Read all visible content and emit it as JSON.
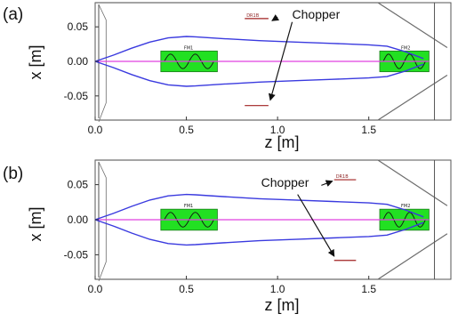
{
  "chart_data": [
    {
      "panel": "(a)",
      "type": "line",
      "xlabel": "z [m]",
      "ylabel": "x [m]",
      "xlim": [
        0.0,
        1.95
      ],
      "ylim": [
        -0.085,
        0.085
      ],
      "xticks": [
        "0.0",
        "0.5",
        "1.0",
        "1.5"
      ],
      "xtick_values": [
        0.0,
        0.5,
        1.0,
        1.5
      ],
      "yticks": [
        "0.05",
        "0.00",
        "-0.05"
      ],
      "ytick_values": [
        0.05,
        0.0,
        -0.05
      ],
      "series": [
        {
          "values_x": [
            0.0,
            0.1,
            0.2,
            0.3,
            0.4,
            0.5,
            0.55,
            0.7,
            0.9,
            1.1,
            1.3,
            1.5,
            1.6,
            1.7,
            1.8
          ],
          "values_y": [
            0.0,
            0.009,
            0.019,
            0.028,
            0.034,
            0.036,
            0.0355,
            0.033,
            0.03,
            0.028,
            0.026,
            0.024,
            0.022,
            0.014,
            0.004
          ]
        },
        {
          "values_x": [
            0.0,
            0.1,
            0.2,
            0.3,
            0.4,
            0.5,
            0.55,
            0.7,
            0.9,
            1.1,
            1.3,
            1.5,
            1.6,
            1.7,
            1.8
          ],
          "values_y": [
            0.0,
            -0.009,
            -0.019,
            -0.028,
            -0.034,
            -0.036,
            -0.0355,
            -0.033,
            -0.03,
            -0.028,
            -0.026,
            -0.024,
            -0.022,
            -0.014,
            -0.004
          ]
        }
      ],
      "axis_line_color": "#e040e0",
      "envelope_color": "#3a3adf",
      "magnets": [
        {
          "label": "FM1",
          "x_start": 0.36,
          "x_end": 0.67,
          "y_half": 0.015
        },
        {
          "label": "FM2",
          "x_start": 1.56,
          "x_end": 1.83,
          "y_half": 0.015
        }
      ],
      "magnet_color": "#22e022",
      "aperture": {
        "color": "#6d6d6d",
        "top": [
          [
            0.0,
            0.085
          ],
          [
            1.55,
            0.085
          ],
          [
            1.93,
            0.02
          ]
        ],
        "bottom": [
          [
            0.0,
            -0.085
          ],
          [
            1.55,
            -0.085
          ],
          [
            1.93,
            -0.02
          ]
        ],
        "left_edge_x": 0.0,
        "divider_x": 1.86
      },
      "markers": [
        {
          "label": "DR1B",
          "x_start": 0.82,
          "x_end": 0.95,
          "y": 0.062
        },
        {
          "x_start": 0.82,
          "x_end": 0.95,
          "y": -0.064
        }
      ],
      "marker_color": "#a02020",
      "annotation": {
        "text": "Chopper",
        "text_z": 1.08,
        "text_x": 0.068,
        "arrows": [
          {
            "from": [
              1.0,
              0.064
            ],
            "to": [
              0.97,
              0.059
            ]
          },
          {
            "from": [
              1.08,
              0.057
            ],
            "to": [
              0.96,
              -0.056
            ]
          }
        ]
      }
    },
    {
      "panel": "(b)",
      "type": "line",
      "xlabel": "z [m]",
      "ylabel": "x [m]",
      "xlim": [
        0.0,
        1.95
      ],
      "ylim": [
        -0.085,
        0.085
      ],
      "xticks": [
        "0.0",
        "0.5",
        "1.0",
        "1.5"
      ],
      "xtick_values": [
        0.0,
        0.5,
        1.0,
        1.5
      ],
      "yticks": [
        "0.05",
        "0.00",
        "-0.05"
      ],
      "ytick_values": [
        0.05,
        0.0,
        -0.05
      ],
      "series": [
        {
          "values_x": [
            0.0,
            0.1,
            0.2,
            0.3,
            0.4,
            0.5,
            0.55,
            0.7,
            0.9,
            1.1,
            1.3,
            1.5,
            1.6,
            1.7,
            1.8
          ],
          "values_y": [
            0.0,
            0.009,
            0.019,
            0.028,
            0.034,
            0.036,
            0.0355,
            0.033,
            0.03,
            0.028,
            0.026,
            0.024,
            0.022,
            0.014,
            0.004
          ]
        },
        {
          "values_x": [
            0.0,
            0.1,
            0.2,
            0.3,
            0.4,
            0.5,
            0.55,
            0.7,
            0.9,
            1.1,
            1.3,
            1.5,
            1.6,
            1.7,
            1.8
          ],
          "values_y": [
            0.0,
            -0.009,
            -0.019,
            -0.028,
            -0.034,
            -0.036,
            -0.0355,
            -0.033,
            -0.03,
            -0.028,
            -0.026,
            -0.024,
            -0.022,
            -0.014,
            -0.004
          ]
        }
      ],
      "axis_line_color": "#e040e0",
      "envelope_color": "#3a3adf",
      "magnets": [
        {
          "label": "FM1",
          "x_start": 0.36,
          "x_end": 0.67,
          "y_half": 0.015
        },
        {
          "label": "FM2",
          "x_start": 1.56,
          "x_end": 1.83,
          "y_half": 0.015
        }
      ],
      "magnet_color": "#22e022",
      "aperture": {
        "color": "#6d6d6d",
        "top": [
          [
            0.0,
            0.085
          ],
          [
            1.55,
            0.085
          ],
          [
            1.93,
            0.02
          ]
        ],
        "bottom": [
          [
            0.0,
            -0.085
          ],
          [
            1.55,
            -0.085
          ],
          [
            1.93,
            -0.02
          ]
        ],
        "left_edge_x": 0.0,
        "divider_x": 1.86
      },
      "markers": [
        {
          "label": "DR1B",
          "x_start": 1.31,
          "x_end": 1.43,
          "y": 0.057
        },
        {
          "x_start": 1.31,
          "x_end": 1.43,
          "y": -0.058
        }
      ],
      "marker_color": "#a02020",
      "annotation": {
        "text": "Chopper",
        "text_z": 0.91,
        "text_x": 0.053,
        "arrows": [
          {
            "from": [
              1.24,
              0.049
            ],
            "to": [
              1.3,
              0.055
            ]
          },
          {
            "from": [
              1.11,
              0.036
            ],
            "to": [
              1.31,
              -0.052
            ]
          }
        ]
      }
    }
  ]
}
